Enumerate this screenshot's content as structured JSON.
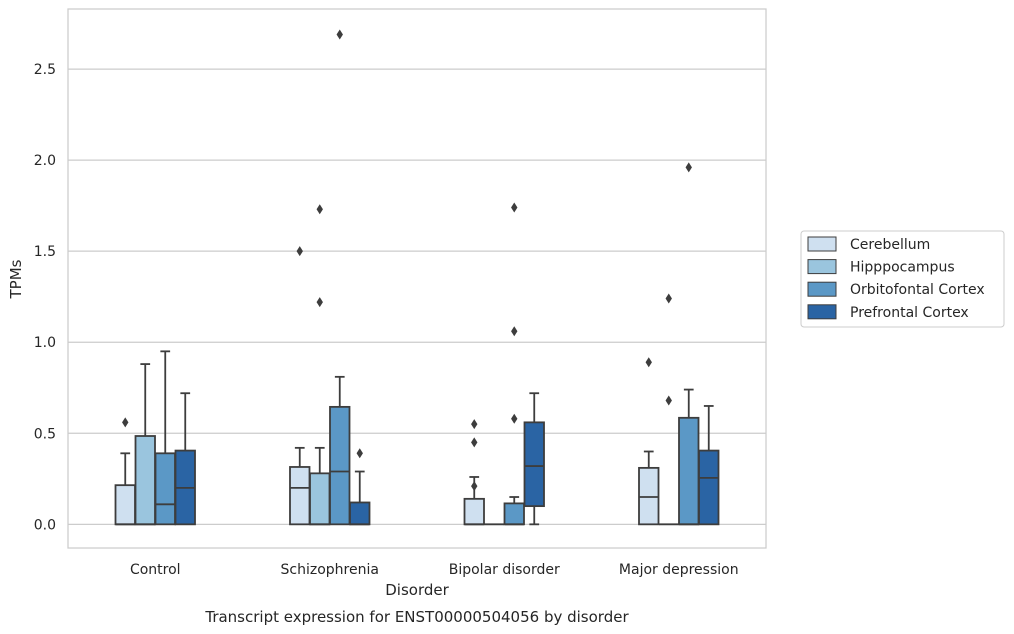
{
  "chart_data": {
    "type": "box",
    "caption": "Transcript expression for ENST00000504056 by disorder",
    "xlabel": "Disorder",
    "ylabel": "TPMs",
    "ylim": [
      -0.13,
      2.83
    ],
    "yticks": [
      0.0,
      0.5,
      1.0,
      1.5,
      2.0,
      2.5
    ],
    "ytick_labels": [
      "0.0",
      "0.5",
      "1.0",
      "1.5",
      "2.0",
      "2.5"
    ],
    "grid": "horizontal",
    "legend_position": "right",
    "categories": [
      "Control",
      "Schizophrenia",
      "Bipolar disorder",
      "Major depression"
    ],
    "series": [
      {
        "name": "Cerebellum",
        "color": "#cfe0f0",
        "boxes": [
          {
            "q1": 0,
            "median": 0,
            "q3": 0.215,
            "whisker_low": 0,
            "whisker_high": 0.39,
            "outliers": [
              0.56
            ]
          },
          {
            "q1": 0,
            "median": 0.2,
            "q3": 0.315,
            "whisker_low": 0,
            "whisker_high": 0.42,
            "outliers": [
              1.5
            ]
          },
          {
            "q1": 0,
            "median": 0,
            "q3": 0.14,
            "whisker_low": 0,
            "whisker_high": 0.26,
            "outliers": [
              0.21,
              0.45,
              0.55
            ]
          },
          {
            "q1": 0,
            "median": 0.15,
            "q3": 0.31,
            "whisker_low": 0,
            "whisker_high": 0.4,
            "outliers": [
              0.89
            ]
          }
        ]
      },
      {
        "name": "Hipppocampus",
        "color": "#9ac5de",
        "boxes": [
          {
            "q1": 0,
            "median": 0,
            "q3": 0.485,
            "whisker_low": 0,
            "whisker_high": 0.88,
            "outliers": []
          },
          {
            "q1": 0,
            "median": 0,
            "q3": 0.28,
            "whisker_low": 0,
            "whisker_high": 0.42,
            "outliers": [
              1.22,
              1.73
            ]
          },
          {
            "q1": 0,
            "median": 0,
            "q3": 0,
            "whisker_low": 0,
            "whisker_high": 0,
            "outliers": []
          },
          {
            "q1": 0,
            "median": 0,
            "q3": 0,
            "whisker_low": 0,
            "whisker_high": 0,
            "outliers": [
              0.68,
              1.24
            ]
          }
        ]
      },
      {
        "name": "Orbitofontal Cortex",
        "color": "#5b98c6",
        "boxes": [
          {
            "q1": 0,
            "median": 0.11,
            "q3": 0.39,
            "whisker_low": 0,
            "whisker_high": 0.95,
            "outliers": []
          },
          {
            "q1": 0,
            "median": 0.29,
            "q3": 0.645,
            "whisker_low": 0,
            "whisker_high": 0.81,
            "outliers": [
              2.69
            ]
          },
          {
            "q1": 0,
            "median": 0,
            "q3": 0.115,
            "whisker_low": 0,
            "whisker_high": 0.15,
            "outliers": [
              0.58,
              1.06,
              1.74
            ]
          },
          {
            "q1": 0,
            "median": 0,
            "q3": 0.585,
            "whisker_low": 0,
            "whisker_high": 0.74,
            "outliers": [
              1.96
            ]
          }
        ]
      },
      {
        "name": "Prefrontal Cortex",
        "color": "#2a64a4",
        "boxes": [
          {
            "q1": 0,
            "median": 0.2,
            "q3": 0.405,
            "whisker_low": 0,
            "whisker_high": 0.72,
            "outliers": []
          },
          {
            "q1": 0,
            "median": 0,
            "q3": 0.12,
            "whisker_low": 0,
            "whisker_high": 0.29,
            "outliers": [
              0.39
            ]
          },
          {
            "q1": 0.1,
            "median": 0.32,
            "q3": 0.56,
            "whisker_low": 0,
            "whisker_high": 0.72,
            "outliers": []
          },
          {
            "q1": 0,
            "median": 0.255,
            "q3": 0.405,
            "whisker_low": 0,
            "whisker_high": 0.65,
            "outliers": []
          }
        ]
      }
    ]
  },
  "colors": {
    "box_edge": "#3d3d3d",
    "grid": "#cccccc",
    "frame": "#cccccc",
    "text": "#262626"
  }
}
